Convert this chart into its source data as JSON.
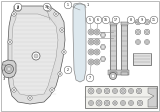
{
  "bg_color": "#ffffff",
  "outer_bg": "#f0f0ec",
  "gray1": "#555555",
  "gray2": "#888888",
  "gray3": "#bbbbbb",
  "gray4": "#333333",
  "part_fill": "#e0e0e0",
  "part_fill2": "#d0d0d0",
  "part_fill3": "#c8c8c8",
  "white": "#ffffff",
  "black": "#111111",
  "lw_main": 0.5,
  "lw_thin": 0.3
}
